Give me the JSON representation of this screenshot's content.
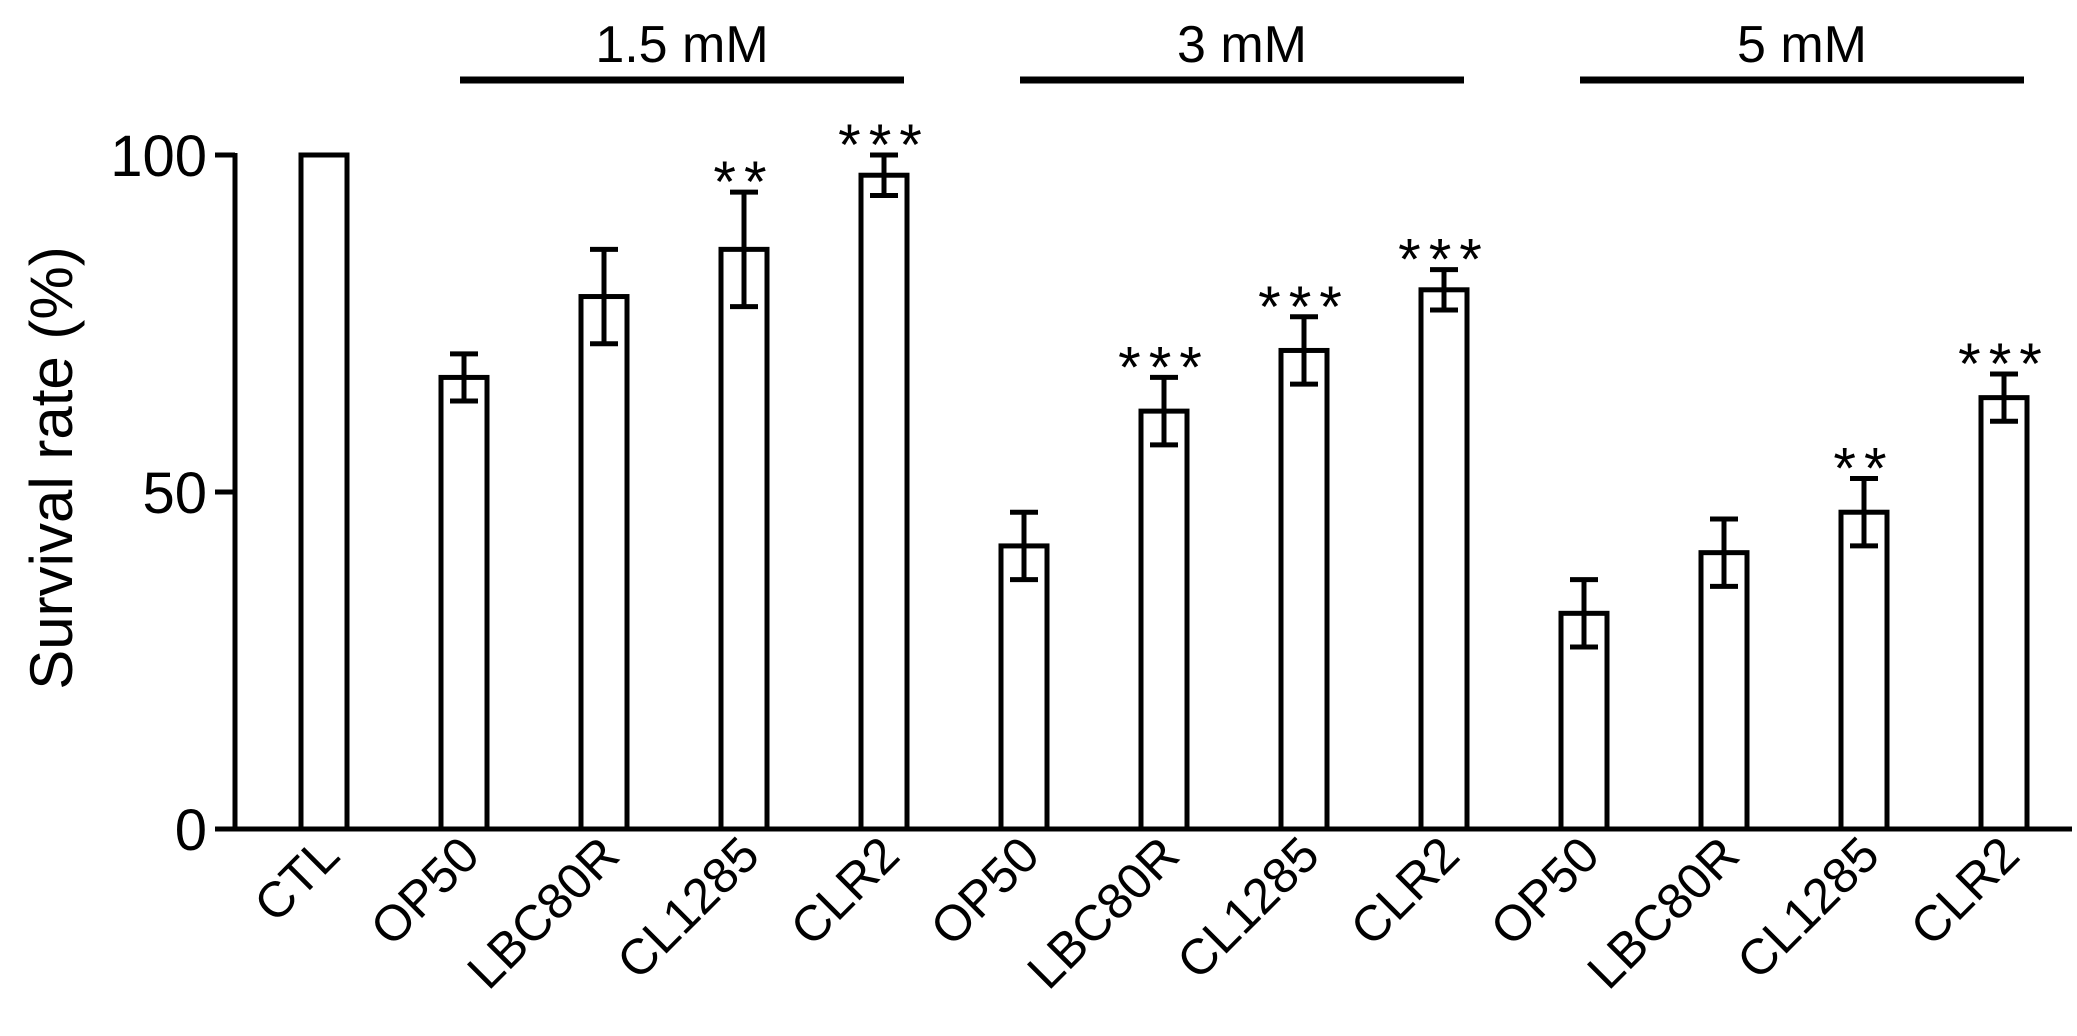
{
  "chart_data": {
    "type": "bar",
    "title": "",
    "xlabel": "",
    "ylabel": "Survival rate (%)",
    "ylim": [
      0,
      100
    ],
    "yticks": [
      0,
      50,
      100
    ],
    "grid": false,
    "legend": "none",
    "colors": {
      "bar_fill": "#ffffff",
      "stroke": "#000000"
    },
    "categories": [
      "CTL",
      "OP50",
      "LBC80R",
      "CL1285",
      "CLR2",
      "OP50",
      "LBC80R",
      "CL1285",
      "CLR2",
      "OP50",
      "LBC80R",
      "CL1285",
      "CLR2"
    ],
    "values": [
      100,
      67,
      79,
      86,
      97,
      42,
      62,
      71,
      80,
      32,
      41,
      47,
      64
    ],
    "errors": [
      0,
      3.5,
      7,
      8.5,
      3,
      5,
      5,
      5,
      3,
      5,
      5,
      5,
      3.5
    ],
    "significance": [
      "",
      "",
      "",
      "**",
      "***",
      "",
      "***",
      "***",
      "***",
      "",
      "",
      "**",
      "***"
    ],
    "groups": [
      {
        "label": "1.5 mM",
        "start": 1,
        "end": 4
      },
      {
        "label": "3 mM",
        "start": 5,
        "end": 8
      },
      {
        "label": "5 mM",
        "start": 9,
        "end": 12
      }
    ]
  }
}
